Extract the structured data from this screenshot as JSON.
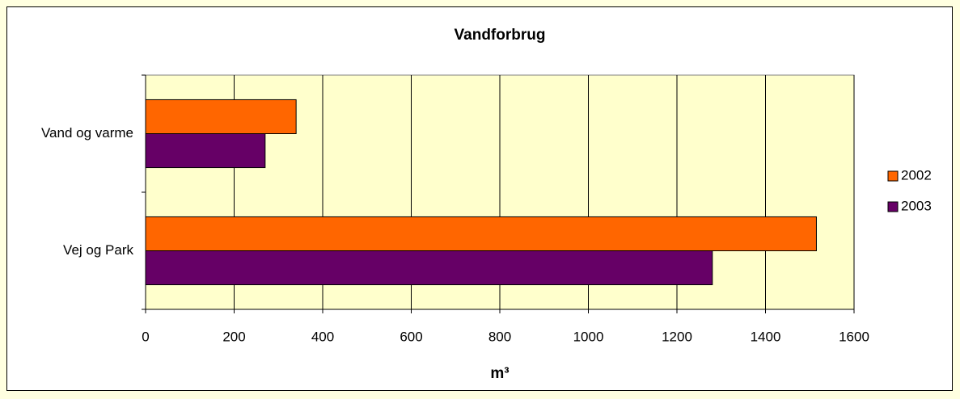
{
  "chart_data": {
    "type": "hbar",
    "title": "Vandforbrug",
    "xlabel": "m³",
    "categories": [
      "Vand og varme",
      "Vej og Park"
    ],
    "series": [
      {
        "name": "2002",
        "color": "#ff6600",
        "values": [
          340,
          1515
        ]
      },
      {
        "name": "2003",
        "color": "#660066",
        "values": [
          270,
          1280
        ]
      }
    ],
    "xlim": [
      0,
      1600
    ],
    "xticks": [
      0,
      200,
      400,
      600,
      800,
      1000,
      1200,
      1400,
      1600
    ],
    "grid": true,
    "legend": "right"
  }
}
